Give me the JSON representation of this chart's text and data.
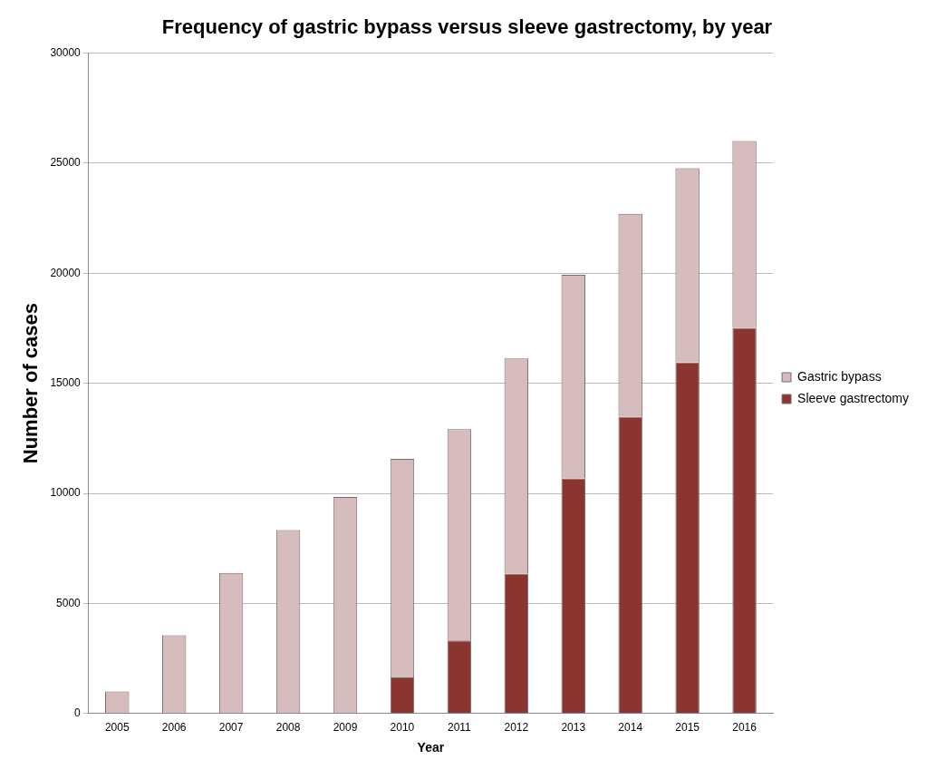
{
  "chart_data": {
    "type": "bar",
    "title": "Frequency of gastric bypass versus sleeve gastrectomy, by year",
    "xlabel": "Year",
    "ylabel": "Number of cases",
    "categories": [
      "2005",
      "2006",
      "2007",
      "2008",
      "2009",
      "2010",
      "2011",
      "2012",
      "2013",
      "2014",
      "2015",
      "2016"
    ],
    "series": [
      {
        "name": "Sleeve gastrectomy",
        "color": "#8b3530",
        "values": [
          0,
          0,
          0,
          0,
          0,
          1640,
          3320,
          6350,
          10680,
          13480,
          15940,
          17520
        ]
      },
      {
        "name": "Gastric bypass",
        "color": "#d6bcbc",
        "values": [
          1000,
          3550,
          6390,
          8330,
          9840,
          9920,
          9590,
          9780,
          9250,
          9220,
          8830,
          8480
        ]
      }
    ],
    "stacked": true,
    "ylim": [
      0,
      30000
    ],
    "yticks": [
      0,
      5000,
      10000,
      15000,
      20000,
      25000,
      30000
    ],
    "grid": "y",
    "legend": "right"
  }
}
